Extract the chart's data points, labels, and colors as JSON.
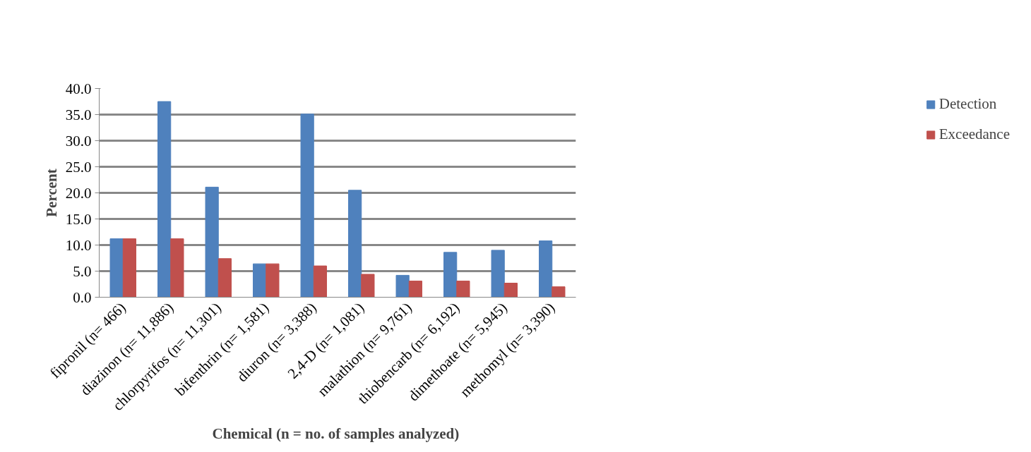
{
  "chart_data": {
    "type": "bar",
    "xlabel": "Chemical (n  = no. of samples analyzed)",
    "ylabel": "Percent",
    "categories": [
      "fipronil (n= 466)",
      "diazinon (n= 11,886)",
      "chlorpyrifos (n= 11,301)",
      "bifenthrin (n= 1,581)",
      "diuron (n= 3,388)",
      "2,4-D (n= 1,081)",
      "malathion (n= 9,761)",
      "thiobencarb (n= 6,192)",
      "dimethoate (n= 5,945)",
      "methomyl (n= 3,390)"
    ],
    "series": [
      {
        "name": "Detection",
        "color": "#4f81bd",
        "values": [
          11.2,
          37.5,
          21.1,
          6.4,
          35.1,
          20.5,
          4.2,
          8.6,
          9.0,
          10.8
        ]
      },
      {
        "name": "Exceedance",
        "color": "#c0504d",
        "values": [
          11.2,
          11.2,
          7.4,
          6.4,
          6.0,
          4.4,
          3.1,
          3.1,
          2.7,
          2.0
        ]
      }
    ],
    "ylim": [
      0,
      40
    ],
    "yticks": [
      {
        "value": 0,
        "label": "0.0"
      },
      {
        "value": 5,
        "label": "5.0"
      },
      {
        "value": 10,
        "label": "10.0"
      },
      {
        "value": 15,
        "label": "15.0"
      },
      {
        "value": 20,
        "label": "20.0"
      },
      {
        "value": 25,
        "label": "25.0"
      },
      {
        "value": 30,
        "label": "30.0"
      },
      {
        "value": 35,
        "label": "35.0"
      },
      {
        "value": 40,
        "label": "40.0"
      }
    ],
    "grid": "y",
    "legend": "right"
  }
}
